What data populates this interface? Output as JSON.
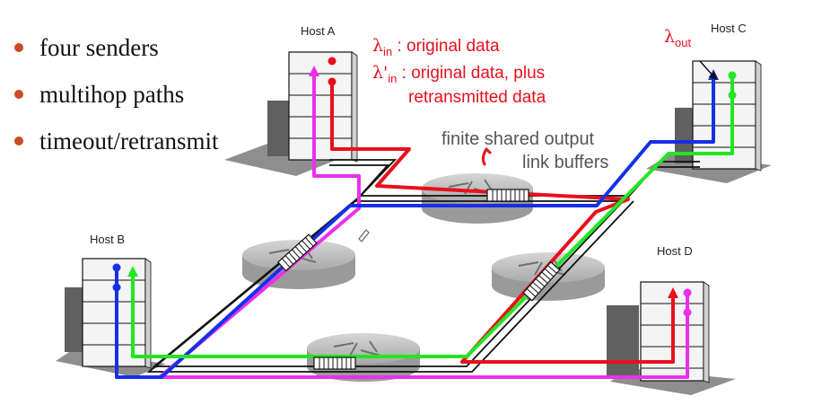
{
  "bullets": [
    "four senders",
    "multihop paths",
    "timeout/retransmit"
  ],
  "hosts": {
    "a": "Host A",
    "b": "Host B",
    "c": "Host C",
    "d": "Host D"
  },
  "labels": {
    "lambda_symbol": "λ",
    "lambda_prime_symbol": "λ'",
    "sub_in": "in",
    "sub_out": "out",
    "lambda_in_text": " : original data",
    "lambda_prime_in_text_line1": " : original data, plus",
    "lambda_prime_in_text_line2": "retransmitted data",
    "buffers_line1": "finite shared output",
    "buffers_line2": "link buffers"
  },
  "colors": {
    "red": "#e8101c",
    "blue": "#1530e6",
    "green": "#22e622",
    "magenta": "#ea2fea",
    "bullet": "#cc4b25",
    "router": "#bdbdbd"
  }
}
